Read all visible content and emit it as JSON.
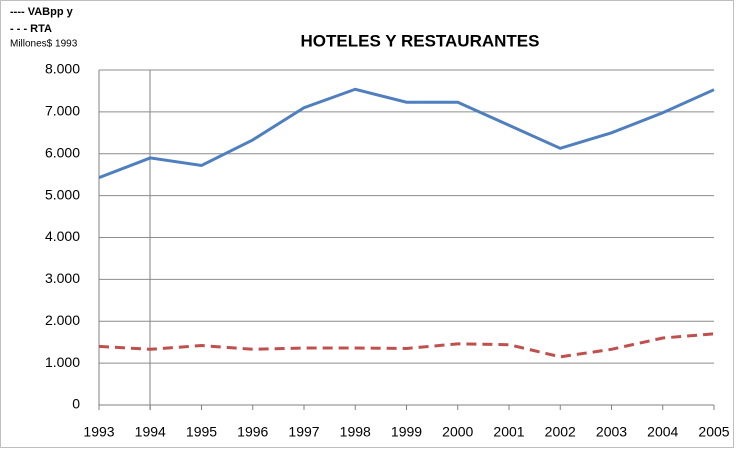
{
  "chart_data": {
    "type": "line",
    "title": "HOTELES Y RESTAURANTES",
    "legend_lines": [
      "---- VABpp y",
      "- - - RTA"
    ],
    "y_label": "Millones$ 1993",
    "categories": [
      "1993",
      "1994",
      "1995",
      "1996",
      "1997",
      "1998",
      "1999",
      "2000",
      "2001",
      "2002",
      "2003",
      "2004",
      "2005"
    ],
    "series": [
      {
        "name": "VABpp y",
        "color": "#4f7fbf",
        "dashed": false,
        "values": [
          5430,
          5900,
          5720,
          6330,
          7100,
          7540,
          7230,
          7230,
          6680,
          6130,
          6500,
          6980,
          7530
        ]
      },
      {
        "name": "RTA",
        "color": "#c0504d",
        "dashed": true,
        "values": [
          1400,
          1330,
          1420,
          1330,
          1360,
          1360,
          1350,
          1460,
          1440,
          1150,
          1330,
          1600,
          1700
        ]
      }
    ],
    "ylim": [
      0,
      8000
    ],
    "yticks": [
      0,
      {
        "value": 1000,
        "label": "1.000"
      },
      {
        "value": 2000,
        "label": "2.000"
      },
      {
        "value": 3000,
        "label": "3.000"
      },
      {
        "value": 4000,
        "label": "4.000"
      },
      {
        "value": 5000,
        "label": "5.000"
      },
      {
        "value": 6000,
        "label": "6.000"
      },
      {
        "value": 7000,
        "label": "7.000"
      },
      {
        "value": 8000,
        "label": "8.000"
      }
    ],
    "grid": true
  }
}
